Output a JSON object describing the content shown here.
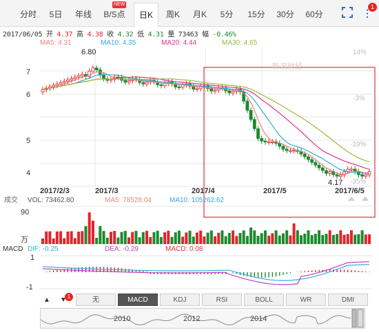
{
  "tabs": [
    {
      "label": "分时",
      "active": false
    },
    {
      "label": "5日",
      "active": false
    },
    {
      "label": "年线",
      "active": false
    },
    {
      "label": "B/S点",
      "active": false
    },
    {
      "label": "日K",
      "active": true
    },
    {
      "label": "周K",
      "active": false
    },
    {
      "label": "月K",
      "active": false
    },
    {
      "label": "5分",
      "active": false
    },
    {
      "label": "15分",
      "active": false
    },
    {
      "label": "30分",
      "active": false
    },
    {
      "label": "60分",
      "active": false
    }
  ],
  "new_badge": "NEW",
  "notification_count": "1",
  "info": {
    "date": "2017/06/05",
    "open_label": "开",
    "open": "4.37",
    "high_label": "高",
    "high": "4.38",
    "close_label": "收",
    "close": "4.32",
    "low_label": "低",
    "low": "4.31",
    "vol_label": "量",
    "vol": "73463",
    "chg_label": "幅",
    "chg": "-0.46%"
  },
  "ma_legend": [
    {
      "text": "MA5: 4.31",
      "color": "#f08080"
    },
    {
      "text": "MA10: 4.35",
      "color": "#33aadd"
    },
    {
      "text": "MA20: 4.44",
      "color": "#dd3388"
    },
    {
      "text": "MA30: 4.65",
      "color": "#99bb33"
    }
  ],
  "price_axis": [
    "7",
    "6",
    "5",
    "4"
  ],
  "pct_axis": [
    "14%",
    "-3%",
    "-19%",
    "-35%"
  ],
  "date_axis": [
    "2017/2/3",
    "2017/3",
    "2017/4",
    "2017/5",
    "2017/6/5"
  ],
  "price_high_label": "6.80",
  "price_low_label": "4.17",
  "watermark": "新浪财经",
  "volume": {
    "label": "成交",
    "vol_text": "VOL: 73462.80",
    "ma5_text": "MA5: 78528.04",
    "ma10_text": "MA10: 105262.62",
    "axis_top": "90",
    "axis_unit": "万"
  },
  "macd": {
    "label": "MACD",
    "dif_text": "DIF: -0.25",
    "dea_text": "DEA: -0.29",
    "macd_text": "MACD: 0.08",
    "axis": [
      "1",
      "-1"
    ]
  },
  "indicator_tabs": [
    {
      "label": "无",
      "active": false
    },
    {
      "label": "MACD",
      "active": true
    },
    {
      "label": "KDJ",
      "active": false
    },
    {
      "label": "RSI",
      "active": false
    },
    {
      "label": "BOLL",
      "active": false
    },
    {
      "label": "WR",
      "active": false
    },
    {
      "label": "DMI",
      "active": false
    }
  ],
  "indicator_badge": "1",
  "mini_years": [
    "2010",
    "2012",
    "2014"
  ],
  "colors": {
    "up": "#e4232a",
    "down": "#1d8a2e",
    "ma5": "#f08080",
    "ma10": "#33aadd",
    "ma20": "#dd3388",
    "ma30": "#99bb33",
    "highlight": "#d9363e"
  }
}
